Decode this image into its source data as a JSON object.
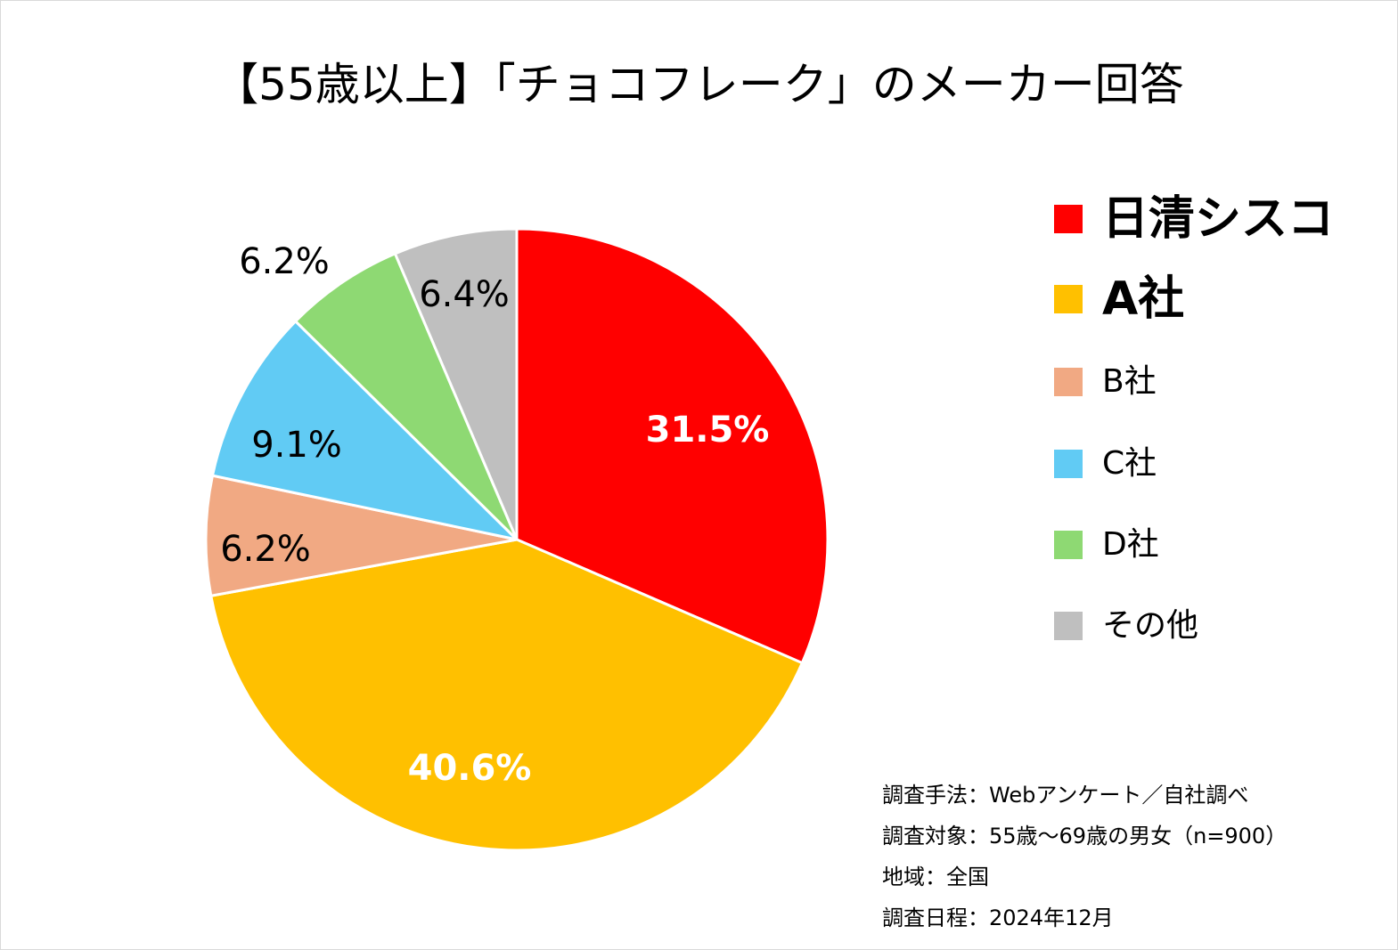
{
  "chart_data": {
    "type": "pie",
    "title": "【55歳以上】「チョコフレーク」のメーカー回答",
    "categories": [
      "日清シスコ",
      "A社",
      "B社",
      "C社",
      "D社",
      "その他"
    ],
    "values": [
      31.5,
      40.6,
      6.2,
      9.1,
      6.2,
      6.4
    ],
    "data_labels": [
      "31.5%",
      "40.6%",
      "6.2%",
      "9.1%",
      "6.2%",
      "6.4%"
    ],
    "colors": [
      "#FF0000",
      "#FFC000",
      "#F1A983",
      "#61CBF4",
      "#8ED973",
      "#BFBFBF"
    ],
    "legend": "right"
  },
  "survey": {
    "method": "調査手法：Webアンケート／自社調べ",
    "target": "調査対象：55歳～69歳の男女（n=900）",
    "region": "地域：全国",
    "date": "調査日程：2024年12月"
  }
}
